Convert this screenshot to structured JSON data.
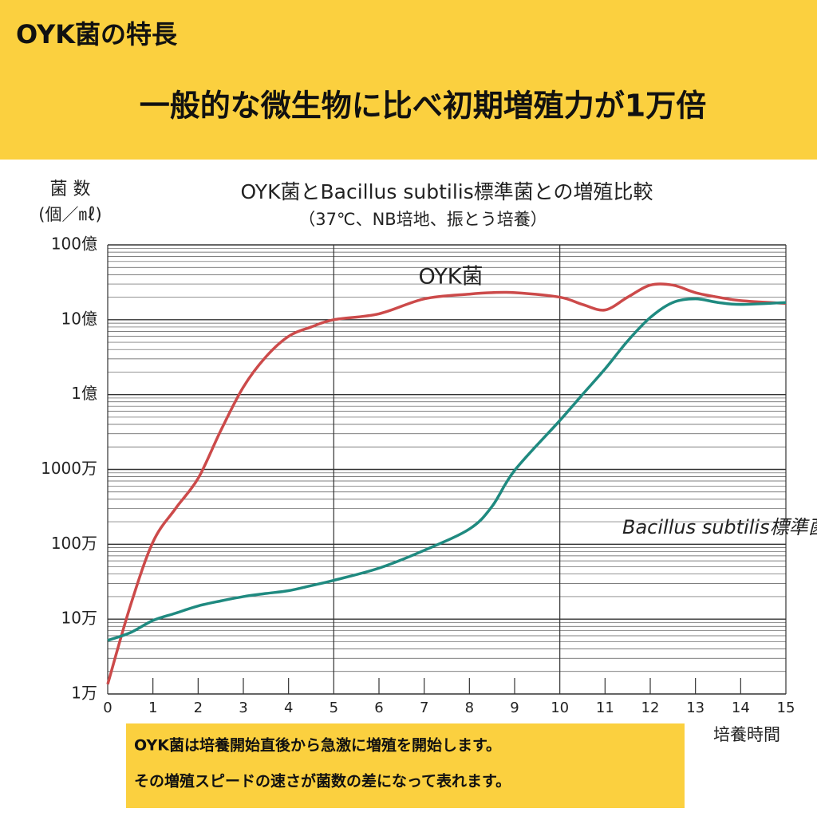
{
  "header": {
    "title": "OYK菌の特長",
    "headline": "一般的な微生物に比べ初期増殖力が1万倍"
  },
  "chart_data": {
    "type": "line",
    "title": "OYK菌とBacillus subtilis標準菌との増殖比較",
    "subtitle": "（37℃、NB培地、振とう培養）",
    "ylabel": [
      "菌 数",
      "(個／㎖)"
    ],
    "xlabel": "培養時間",
    "log_y": true,
    "grid": true,
    "minor_grid": true,
    "x": [
      0,
      0.5,
      1,
      1.5,
      2,
      2.5,
      3,
      3.5,
      4,
      4.5,
      5,
      6,
      7,
      8,
      8.5,
      9,
      10,
      10.5,
      11,
      11.5,
      12,
      12.5,
      13,
      13.5,
      14,
      15
    ],
    "series": [
      {
        "name": "OYK菌",
        "color": "#cc4a4a",
        "values": [
          13500,
          150000,
          1070000,
          3000000,
          7600000,
          33000000,
          126000000,
          320000000,
          600000000,
          800000000,
          1000000000,
          1200000000,
          1900000000,
          2200000000,
          2300000000,
          2300000000,
          2000000000,
          1600000000,
          1350000000,
          2000000000,
          2900000000,
          2900000000,
          2300000000,
          2000000000,
          1800000000,
          1650000000
        ]
      },
      {
        "name": "Bacillus subtilis標準菌",
        "color": "#1f8a80",
        "values": [
          52000,
          66000,
          96000,
          120000,
          150000,
          175000,
          200000,
          220000,
          240000,
          280000,
          330000,
          480000,
          830000,
          1600000,
          3200000,
          9700000,
          45000000,
          100000000,
          220000000,
          520000000,
          1070000000,
          1700000000,
          1900000000,
          1700000000,
          1600000000,
          1700000000
        ]
      }
    ],
    "xlim": [
      0,
      15
    ],
    "xticks": [
      0,
      1,
      2,
      3,
      4,
      5,
      6,
      7,
      8,
      9,
      10,
      11,
      12,
      13,
      14,
      15
    ],
    "x_major_ticks": [
      0,
      5,
      10,
      15
    ],
    "ylim": [
      10000,
      10000000000
    ],
    "yticks": [
      {
        "value": 10000,
        "label": "1万"
      },
      {
        "value": 100000,
        "label": "10万"
      },
      {
        "value": 1000000,
        "label": "100万"
      },
      {
        "value": 10000000,
        "label": "1000万"
      },
      {
        "value": 100000000,
        "label": "1億"
      },
      {
        "value": 1000000000,
        "label": "10億"
      },
      {
        "value": 10000000000,
        "label": "100億"
      }
    ]
  },
  "note": [
    "OYK菌は培養開始直後から急激に増殖を開始します。",
    "その増殖スピードの速さが菌数の差になって表れます。"
  ]
}
